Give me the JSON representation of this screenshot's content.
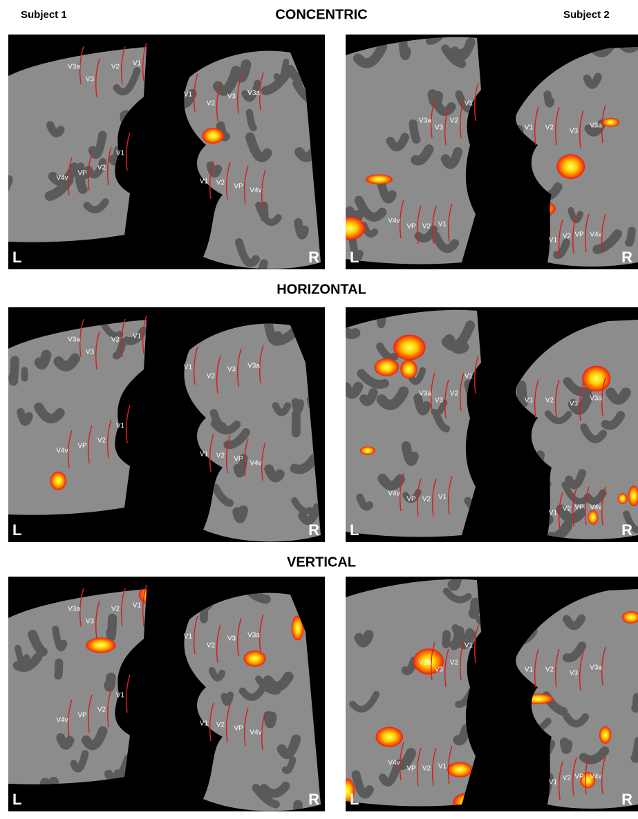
{
  "figure": {
    "subject_labels": [
      "Subject 1",
      "Subject 2"
    ],
    "rows": [
      {
        "title": "CONCENTRIC",
        "panels": [
          {
            "corner_labels": [
              "L",
              "R"
            ],
            "area_labels": [
              "V3a",
              "V3",
              "V2",
              "V1",
              "V1",
              "V2",
              "VP",
              "V4v",
              "V1",
              "V2",
              "V3",
              "V3a",
              "V1",
              "V2",
              "VP",
              "V4v"
            ]
          },
          {
            "corner_labels": [
              "L",
              "R"
            ],
            "area_labels": [
              "V3a",
              "V3",
              "V2",
              "V1",
              "V4v",
              "VP",
              "V2",
              "V1",
              "V1",
              "V2",
              "V3",
              "V3a",
              "V1",
              "V2",
              "VP",
              "V4v"
            ]
          }
        ]
      },
      {
        "title": "HORIZONTAL",
        "panels": [
          {
            "corner_labels": [
              "L",
              "R"
            ],
            "area_labels": [
              "V3a",
              "V3",
              "V2",
              "V1",
              "V1",
              "V2",
              "VP",
              "V4v",
              "V1",
              "V2",
              "V3",
              "V3a",
              "V1",
              "V2",
              "VP",
              "V4v"
            ]
          },
          {
            "corner_labels": [
              "L",
              "R"
            ],
            "area_labels": [
              "V3a",
              "V3",
              "V2",
              "V1",
              "V4v",
              "VP",
              "V2",
              "V1",
              "V1",
              "V2",
              "V3",
              "V3a",
              "V1",
              "V2",
              "VP",
              "V4v"
            ]
          }
        ]
      },
      {
        "title": "VERTICAL",
        "panels": [
          {
            "corner_labels": [
              "L",
              "R"
            ],
            "area_labels": [
              "V3a",
              "V3",
              "V2",
              "V1",
              "V1",
              "V2",
              "VP",
              "V4v",
              "V1",
              "V2",
              "V3",
              "V3a",
              "V1",
              "V2",
              "VP",
              "V4v"
            ]
          },
          {
            "corner_labels": [
              "L",
              "R"
            ],
            "area_labels": [
              "V3a",
              "V3",
              "V2",
              "V1",
              "V4v",
              "VP",
              "V2",
              "V1",
              "V1",
              "V2",
              "V3",
              "V3a",
              "V1",
              "V2",
              "VP",
              "V4v"
            ]
          }
        ]
      }
    ]
  }
}
